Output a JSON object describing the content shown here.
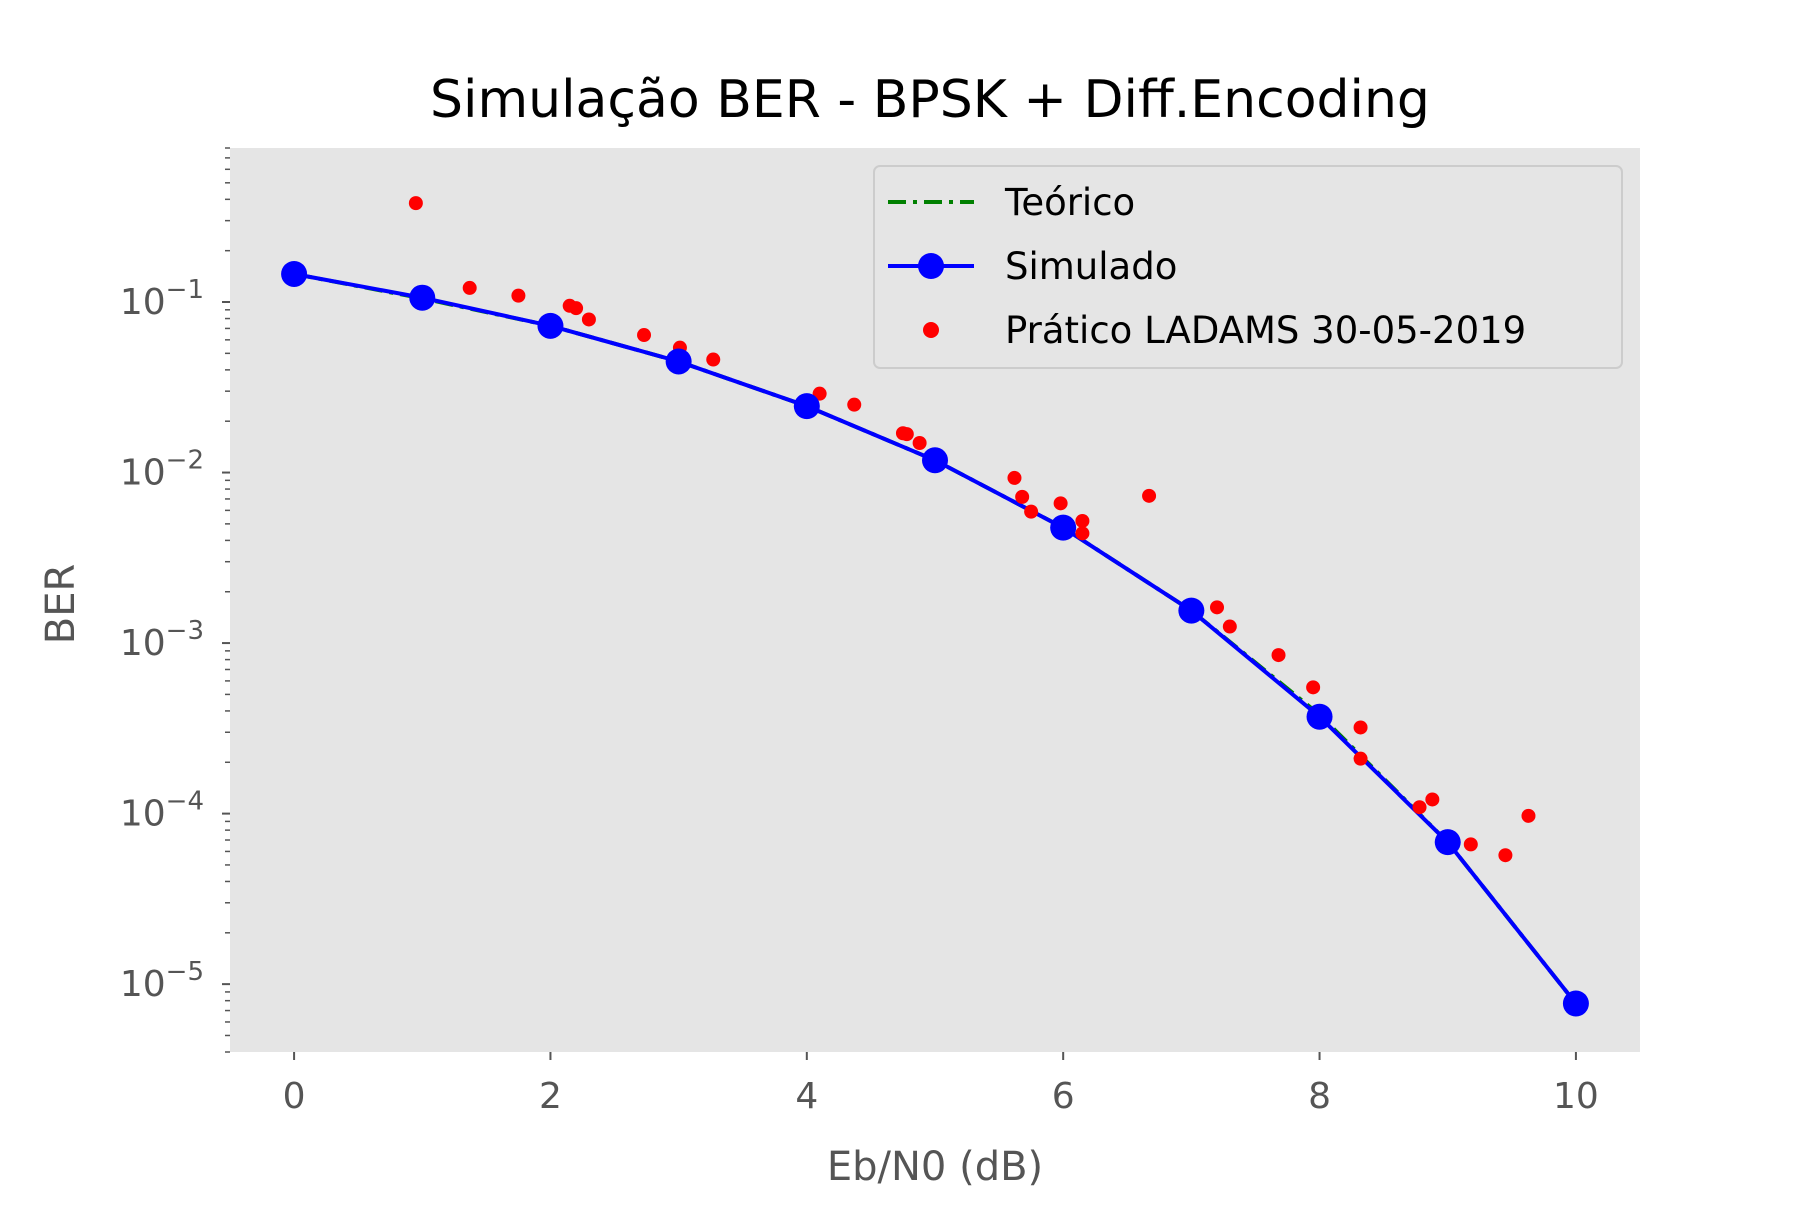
{
  "chart_data": {
    "type": "line",
    "title": "Simulação BER - BPSK + Diff.Encoding",
    "xlabel": "Eb/N0 (dB)",
    "ylabel": "BER",
    "xlim": [
      -0.5,
      10.5
    ],
    "ylim": [
      4e-06,
      0.8
    ],
    "yscale": "log",
    "grid": false,
    "background": "#e5e5e5",
    "legend_position": "top-right",
    "x_ticks": [
      {
        "value": 0,
        "label": "0"
      },
      {
        "value": 2,
        "label": "2"
      },
      {
        "value": 4,
        "label": "4"
      },
      {
        "value": 6,
        "label": "6"
      },
      {
        "value": 8,
        "label": "8"
      },
      {
        "value": 10,
        "label": "10"
      }
    ],
    "y_ticks": [
      {
        "value": 0.1,
        "base": "10",
        "exp": "−1"
      },
      {
        "value": 0.01,
        "base": "10",
        "exp": "−2"
      },
      {
        "value": 0.001,
        "base": "10",
        "exp": "−3"
      },
      {
        "value": 0.0001,
        "base": "10",
        "exp": "−4"
      },
      {
        "value": 1e-05,
        "base": "10",
        "exp": "−5"
      }
    ],
    "series": [
      {
        "name": "Teórico",
        "style": "dash-dot",
        "color": "#008000",
        "x": [
          0,
          1,
          2,
          3,
          4,
          5,
          6,
          7,
          8,
          9,
          10
        ],
        "y": [
          0.146,
          0.105,
          0.0725,
          0.0448,
          0.0245,
          0.0118,
          0.00475,
          0.00155,
          0.00038,
          6.8e-05,
          7.7e-06
        ]
      },
      {
        "name": "Simulado",
        "style": "line-marker",
        "color": "#0000ff",
        "x": [
          0,
          1,
          2,
          3,
          4,
          5,
          6,
          7,
          8,
          9,
          10
        ],
        "y": [
          0.146,
          0.106,
          0.0725,
          0.0448,
          0.0245,
          0.0118,
          0.00475,
          0.00155,
          0.00037,
          6.8e-05,
          7.7e-06
        ]
      },
      {
        "name": "Prático LADAMS 30-05-2019",
        "style": "scatter",
        "color": "#ff0000",
        "points": [
          [
            0.95,
            0.38
          ],
          [
            1.37,
            0.121
          ],
          [
            1.75,
            0.109
          ],
          [
            2.15,
            0.095
          ],
          [
            2.2,
            0.092
          ],
          [
            2.3,
            0.079
          ],
          [
            2.73,
            0.064
          ],
          [
            3.01,
            0.054
          ],
          [
            3.27,
            0.046
          ],
          [
            4.1,
            0.029
          ],
          [
            4.37,
            0.025
          ],
          [
            4.75,
            0.017
          ],
          [
            4.78,
            0.0168
          ],
          [
            4.88,
            0.0149
          ],
          [
            5.62,
            0.0093
          ],
          [
            5.68,
            0.0072
          ],
          [
            5.75,
            0.0059
          ],
          [
            5.98,
            0.0066
          ],
          [
            6.15,
            0.0052
          ],
          [
            6.15,
            0.0044
          ],
          [
            6.67,
            0.0073
          ],
          [
            7.2,
            0.00162
          ],
          [
            7.3,
            0.00125
          ],
          [
            7.68,
            0.00085
          ],
          [
            7.95,
            0.00055
          ],
          [
            8.32,
            0.00032
          ],
          [
            8.32,
            0.00021
          ],
          [
            8.78,
            0.000109
          ],
          [
            8.88,
            0.000121
          ],
          [
            9.18,
            6.6e-05
          ],
          [
            9.45,
            5.7e-05
          ],
          [
            9.63,
            9.7e-05
          ]
        ]
      }
    ]
  }
}
